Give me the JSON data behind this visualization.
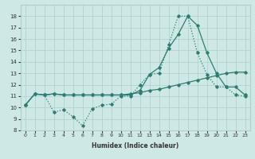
{
  "xlabel": "Humidex (Indice chaleur)",
  "xlim": [
    -0.5,
    23.5
  ],
  "ylim": [
    8,
    19
  ],
  "yticks": [
    8,
    9,
    10,
    11,
    12,
    13,
    14,
    15,
    16,
    17,
    18
  ],
  "xticks": [
    0,
    1,
    2,
    3,
    4,
    5,
    6,
    7,
    8,
    9,
    10,
    11,
    12,
    13,
    14,
    15,
    16,
    17,
    18,
    19,
    20,
    21,
    22,
    23
  ],
  "bg_color": "#cde8e5",
  "line_color": "#2e7d72",
  "grid_color": "#aecfcc",
  "line1_x": [
    0,
    1,
    2,
    3,
    4,
    5,
    6,
    7,
    8,
    9,
    10,
    11,
    12,
    13,
    14,
    15,
    16,
    17,
    18,
    19,
    20,
    21,
    22,
    23
  ],
  "line1_y": [
    10.2,
    11.2,
    11.1,
    11.2,
    11.1,
    11.1,
    11.1,
    11.1,
    11.1,
    11.1,
    11.1,
    11.1,
    11.5,
    12.9,
    13.5,
    15.2,
    16.4,
    18.0,
    17.2,
    14.8,
    13.0,
    11.8,
    11.8,
    11.1
  ],
  "line2_x": [
    0,
    1,
    2,
    3,
    4,
    5,
    6,
    7,
    8,
    9,
    10,
    11,
    12,
    13,
    14,
    15,
    16,
    17,
    18,
    19,
    20,
    21,
    22,
    23
  ],
  "line2_y": [
    10.2,
    11.2,
    11.1,
    9.6,
    9.8,
    9.2,
    8.4,
    9.9,
    10.2,
    10.3,
    11.0,
    11.0,
    12.0,
    12.9,
    13.0,
    15.5,
    18.0,
    18.0,
    14.8,
    12.9,
    11.8,
    11.8,
    11.1,
    11.0
  ],
  "line3_x": [
    0,
    1,
    2,
    3,
    4,
    5,
    6,
    7,
    8,
    9,
    10,
    11,
    12,
    13,
    14,
    15,
    16,
    17,
    18,
    19,
    20,
    21,
    22,
    23
  ],
  "line3_y": [
    10.2,
    11.2,
    11.1,
    11.2,
    11.1,
    11.1,
    11.1,
    11.1,
    11.1,
    11.1,
    11.1,
    11.2,
    11.3,
    11.5,
    11.6,
    11.8,
    12.0,
    12.2,
    12.4,
    12.6,
    12.8,
    13.0,
    13.1,
    13.1
  ]
}
